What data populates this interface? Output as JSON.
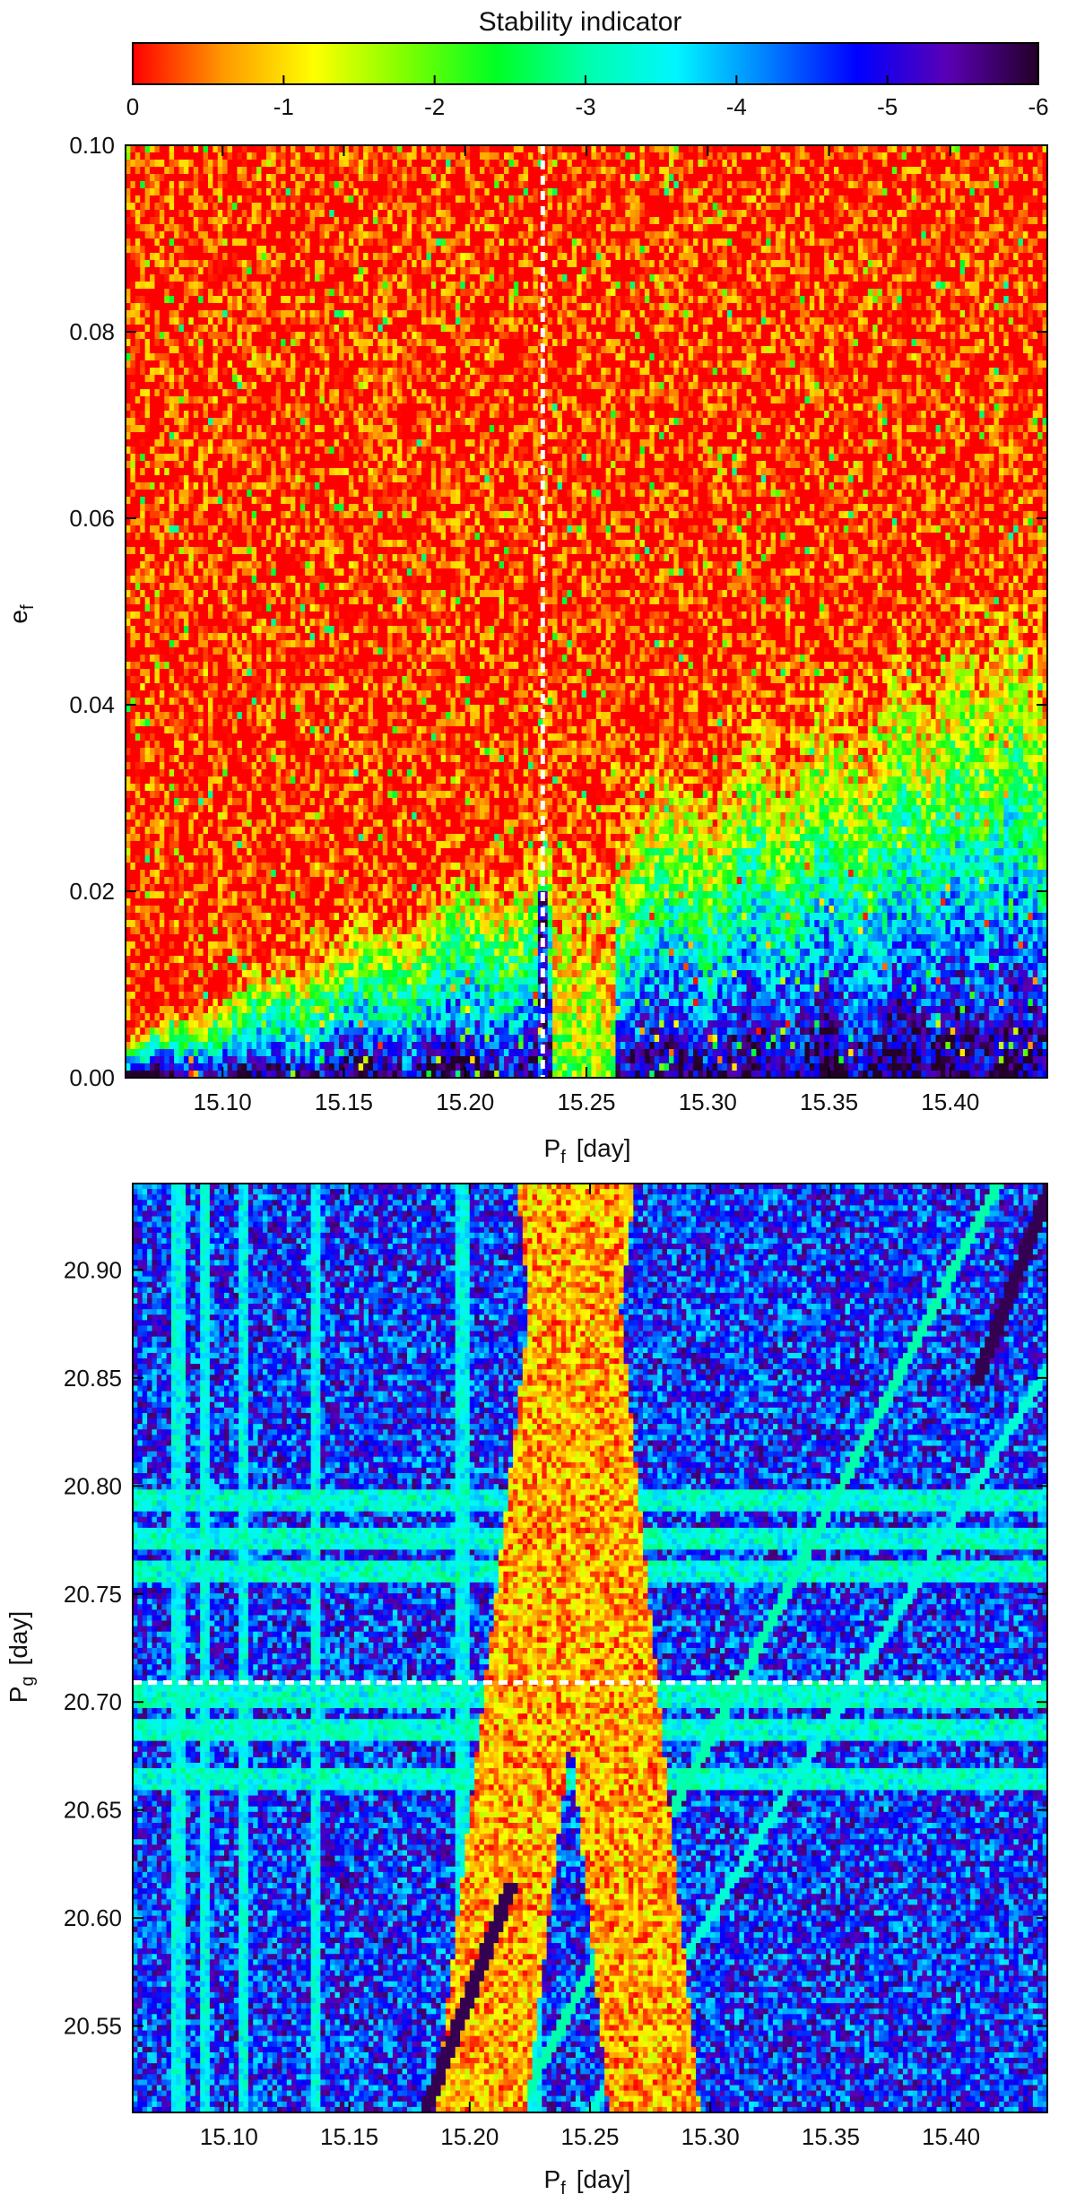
{
  "colorbar": {
    "title": "Stability indicator",
    "range": [
      0,
      -6
    ],
    "ticks": [
      "0",
      "-1",
      "-2",
      "-3",
      "-4",
      "-5",
      "-6"
    ],
    "colormap": [
      "#ff0000",
      "#ff9900",
      "#ffff00",
      "#7fff00",
      "#00ff22",
      "#00ffaa",
      "#00f6ff",
      "#0080ff",
      "#0000ff",
      "#5a00b4",
      "#230028"
    ]
  },
  "chart_data": [
    {
      "type": "heatmap",
      "x_label_main": "P",
      "x_label_sub": "f",
      "x_label_unit": "[day]",
      "y_label_main": "e",
      "y_label_sub": "f",
      "xlim": [
        15.06,
        15.44
      ],
      "ylim": [
        0.0,
        0.1
      ],
      "x_ticks": [
        "15.10",
        "15.15",
        "15.20",
        "15.25",
        "15.30",
        "15.35",
        "15.40"
      ],
      "y_ticks": [
        "0.00",
        "0.02",
        "0.04",
        "0.06",
        "0.08",
        "0.10"
      ],
      "reference_line": {
        "orientation": "vertical",
        "x": 15.232,
        "style": "white dashed"
      },
      "value_scale": "stability indicator, 0 (red, chaotic) to -6 (black, stable)"
    },
    {
      "type": "heatmap",
      "x_label_main": "P",
      "x_label_sub": "f",
      "x_label_unit": "[day]",
      "y_label_main": "P",
      "y_label_sub": "g",
      "y_label_unit": "[day]",
      "xlim": [
        15.06,
        15.44
      ],
      "ylim": [
        20.51,
        20.94
      ],
      "x_ticks": [
        "15.10",
        "15.15",
        "15.20",
        "15.25",
        "15.30",
        "15.35",
        "15.40"
      ],
      "y_ticks": [
        "20.55",
        "20.60",
        "20.65",
        "20.70",
        "20.75",
        "20.80",
        "20.85",
        "20.90"
      ],
      "reference_line": {
        "orientation": "horizontal",
        "y": 20.709,
        "style": "white dashed"
      },
      "value_scale": "stability indicator, 0 (red, chaotic) to -6 (black, stable)"
    }
  ]
}
